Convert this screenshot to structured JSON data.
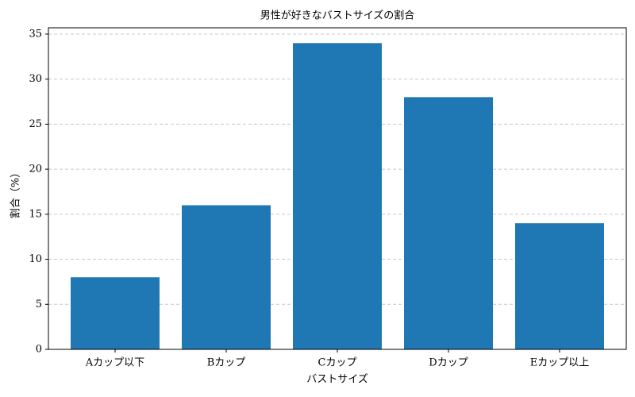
{
  "chart_data": {
    "type": "bar",
    "title": "男性が好きなバストサイズの割合",
    "x_label": "バストサイズ",
    "y_label": "割合（%）",
    "categories": [
      "Aカップ以下",
      "Bカップ",
      "Cカップ",
      "Dカップ",
      "Eカップ以上"
    ],
    "values": [
      8,
      16,
      34,
      28,
      14
    ],
    "color": "#1f77b4",
    "ylim": [
      0,
      35.7
    ],
    "yticks": [
      0,
      5,
      10,
      15,
      20,
      25,
      30,
      35
    ],
    "grid": true
  }
}
